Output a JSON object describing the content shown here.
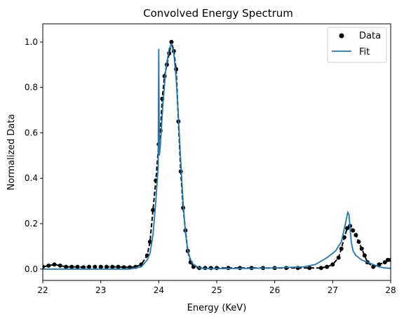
{
  "chart_data": {
    "type": "scatter",
    "title": "Convolved Energy Spectrum",
    "xlabel": "Energy (KeV)",
    "ylabel": "Normalized Data",
    "xlim": [
      22,
      28
    ],
    "ylim": [
      -0.05,
      1.08
    ],
    "xticks": [
      22,
      23,
      24,
      25,
      26,
      27,
      28
    ],
    "yticks": [
      0.0,
      0.2,
      0.4,
      0.6,
      0.8,
      1.0
    ],
    "grid": false,
    "legend_position": "top-right",
    "colors": {
      "data": "#000000",
      "fit": "#1f77b4"
    },
    "series": [
      {
        "name": "Data",
        "kind": "scatter-with-dashed-line",
        "x": [
          22.0,
          22.1,
          22.2,
          22.3,
          22.4,
          22.5,
          22.6,
          22.7,
          22.8,
          22.9,
          23.0,
          23.1,
          23.2,
          23.3,
          23.4,
          23.5,
          23.6,
          23.7,
          23.8,
          23.85,
          23.9,
          23.95,
          24.0,
          24.03,
          24.06,
          24.1,
          24.14,
          24.18,
          24.22,
          24.26,
          24.3,
          24.34,
          24.38,
          24.42,
          24.46,
          24.5,
          24.55,
          24.6,
          24.7,
          24.8,
          24.9,
          25.0,
          25.2,
          25.4,
          25.6,
          25.8,
          26.0,
          26.2,
          26.4,
          26.6,
          26.8,
          26.9,
          27.0,
          27.1,
          27.15,
          27.2,
          27.25,
          27.3,
          27.35,
          27.4,
          27.45,
          27.5,
          27.55,
          27.6,
          27.7,
          27.8,
          27.9,
          27.95,
          28.0
        ],
        "y": [
          0.01,
          0.015,
          0.02,
          0.015,
          0.01,
          0.01,
          0.01,
          0.008,
          0.01,
          0.01,
          0.01,
          0.01,
          0.01,
          0.01,
          0.008,
          0.008,
          0.01,
          0.02,
          0.06,
          0.12,
          0.26,
          0.39,
          0.55,
          0.61,
          0.75,
          0.85,
          0.9,
          0.95,
          1.0,
          0.96,
          0.88,
          0.65,
          0.43,
          0.27,
          0.17,
          0.08,
          0.03,
          0.01,
          0.005,
          0.005,
          0.005,
          0.005,
          0.005,
          0.005,
          0.005,
          0.005,
          0.005,
          0.005,
          0.005,
          0.005,
          0.005,
          0.01,
          0.02,
          0.05,
          0.09,
          0.14,
          0.18,
          0.19,
          0.17,
          0.15,
          0.12,
          0.09,
          0.06,
          0.03,
          0.01,
          0.02,
          0.03,
          0.04,
          0.04
        ]
      },
      {
        "name": "Fit",
        "kind": "line",
        "x": [
          22.0,
          22.5,
          23.0,
          23.5,
          23.7,
          23.8,
          23.85,
          23.9,
          23.95,
          23.99,
          24.0,
          24.01,
          24.03,
          24.07,
          24.12,
          24.18,
          24.22,
          24.26,
          24.3,
          24.34,
          24.38,
          24.42,
          24.46,
          24.5,
          24.55,
          24.6,
          24.7,
          24.8,
          25.0,
          25.5,
          26.0,
          26.5,
          26.7,
          26.9,
          27.05,
          27.15,
          27.22,
          27.26,
          27.28,
          27.3,
          27.32,
          27.35,
          27.4,
          27.5,
          27.6,
          27.7,
          27.8,
          27.9,
          28.0
        ],
        "y": [
          0.0,
          0.0,
          0.0,
          0.0,
          0.01,
          0.04,
          0.07,
          0.15,
          0.3,
          0.45,
          0.97,
          0.5,
          0.55,
          0.72,
          0.88,
          0.97,
          0.99,
          0.95,
          0.84,
          0.67,
          0.47,
          0.29,
          0.16,
          0.08,
          0.04,
          0.02,
          0.005,
          0.002,
          0.002,
          0.003,
          0.005,
          0.01,
          0.02,
          0.05,
          0.08,
          0.12,
          0.2,
          0.25,
          0.24,
          0.18,
          0.12,
          0.08,
          0.06,
          0.04,
          0.03,
          0.02,
          0.01,
          0.005,
          0.003
        ]
      }
    ]
  }
}
